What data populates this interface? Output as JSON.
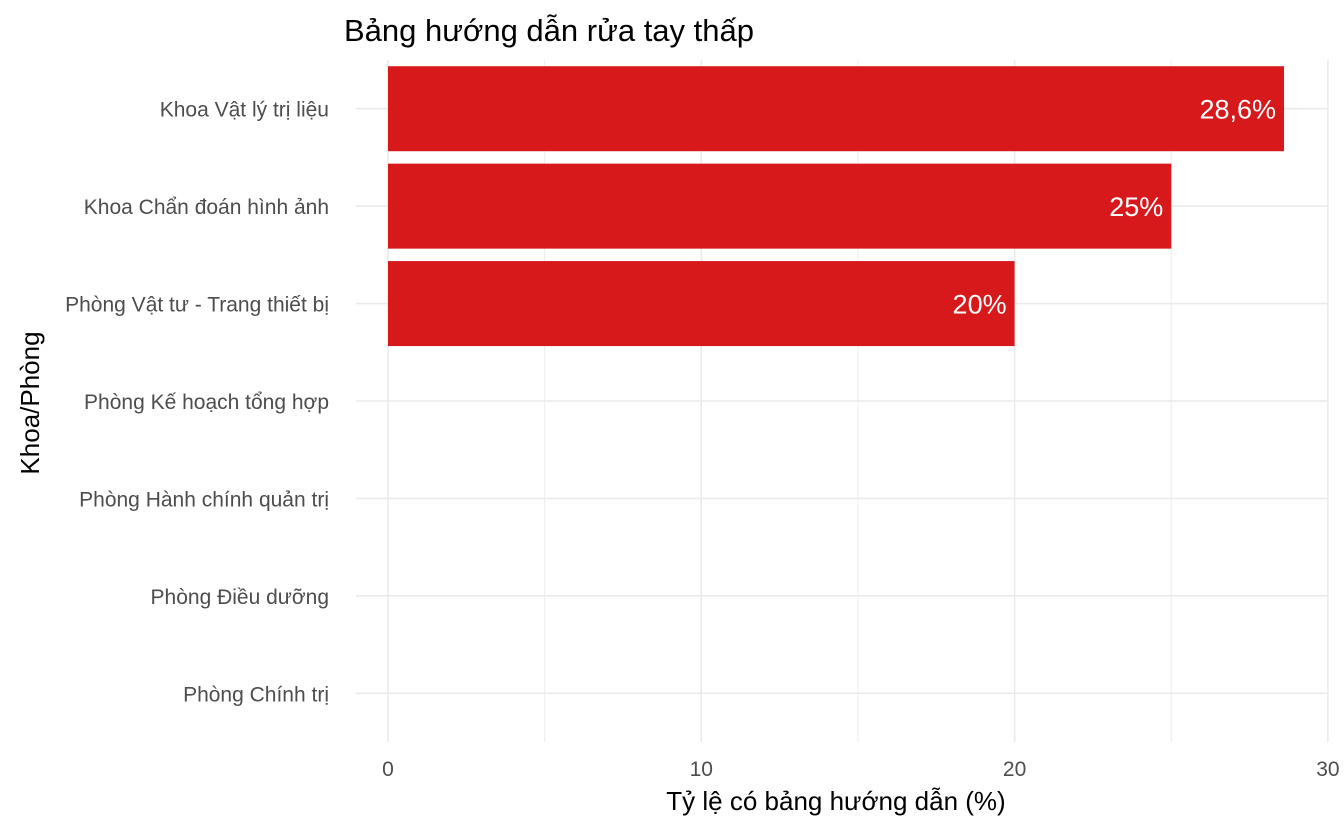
{
  "chart_data": {
    "type": "bar",
    "orientation": "horizontal",
    "title": "Bảng hướng dẫn rửa tay thấp",
    "xlabel": "Tỷ lệ có bảng hướng dẫn (%)",
    "ylabel": "Khoa/Phòng",
    "categories": [
      "Khoa Vật lý trị liệu",
      "Khoa Chẩn đoán hình ảnh",
      "Phòng Vật tư - Trang thiết bị",
      "Phòng Kế hoạch tổng hợp",
      "Phòng Hành chính quản trị",
      "Phòng Điều dưỡng",
      "Phòng Chính trị"
    ],
    "values": [
      28.6,
      25,
      20,
      0,
      0,
      0,
      0
    ],
    "data_labels": [
      "28,6%",
      "25%",
      "20%",
      "",
      "",
      "",
      ""
    ],
    "xlim": [
      0,
      30
    ],
    "xticks": [
      0,
      10,
      20,
      30
    ],
    "xtick_labels": [
      "0",
      "10",
      "20",
      "30"
    ],
    "grid": true,
    "legend": "none",
    "bar_color": "#d7191c",
    "grid_color": "#ebebeb",
    "background_color": "#ffffff"
  }
}
